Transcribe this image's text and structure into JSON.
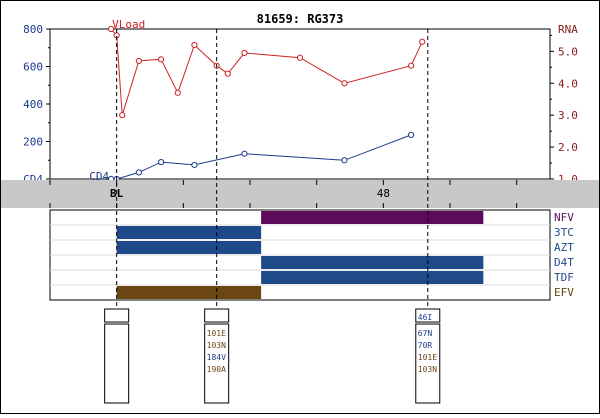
{
  "title": "81659: RG373",
  "colors": {
    "frame": "#000000",
    "cd4_axis": "#1c3a8c",
    "rna_axis": "#8b1a1a",
    "vload_series": "#cc2222",
    "cd4_series": "#1c3a8c",
    "time_band": "#c8c8c8",
    "nfv": "#5c0a5c",
    "nrti": "#1f4a8a",
    "efv": "#6b4512",
    "mutation_blue": "#1c3a8c",
    "mutation_brown": "#6b4512"
  },
  "chart_data": {
    "type": "line",
    "title": "81659: RG373",
    "left_axis": {
      "unit_label": "CD4",
      "ticks": [
        0,
        200,
        400,
        600,
        800
      ],
      "ylim": [
        0,
        800
      ]
    },
    "right_axis": {
      "unit_label": "RNA",
      "ticks": [
        "1.0",
        "2.0",
        "3.0",
        "4.0",
        "5.0"
      ],
      "ylim": [
        1.0,
        5.7
      ]
    },
    "time_axis": {
      "labels": [
        {
          "text": "BL",
          "t": 0
        },
        {
          "text": "48",
          "t": 48
        }
      ],
      "xlim": [
        -12,
        78
      ]
    },
    "series": [
      {
        "name": "VLoad",
        "axis": "right",
        "points": [
          [
            -1,
            5.7
          ],
          [
            0,
            5.5
          ],
          [
            1,
            3.0
          ],
          [
            4,
            4.7
          ],
          [
            8,
            4.75
          ],
          [
            11,
            3.7
          ],
          [
            14,
            5.2
          ],
          [
            18,
            4.55
          ],
          [
            20,
            4.3
          ],
          [
            23,
            4.95
          ],
          [
            33,
            4.8
          ],
          [
            41,
            4.0
          ],
          [
            53,
            4.55
          ],
          [
            55,
            5.3
          ]
        ]
      },
      {
        "name": "CD4",
        "axis": "left",
        "points": [
          [
            -1,
            0
          ],
          [
            0,
            0
          ],
          [
            4,
            35
          ],
          [
            8,
            90
          ],
          [
            14,
            75
          ],
          [
            23,
            135
          ],
          [
            41,
            100
          ],
          [
            53,
            235
          ]
        ]
      }
    ],
    "markers": [
      0,
      18,
      56
    ],
    "drugs": [
      {
        "name": "NFV",
        "color_key": "nfv",
        "bars": [
          [
            26,
            66
          ]
        ]
      },
      {
        "name": "3TC",
        "color_key": "nrti",
        "bars": [
          [
            0,
            26
          ]
        ]
      },
      {
        "name": "AZT",
        "color_key": "nrti",
        "bars": [
          [
            0,
            26
          ]
        ]
      },
      {
        "name": "D4T",
        "color_key": "nrti",
        "bars": [
          [
            26,
            66
          ]
        ]
      },
      {
        "name": "TDF",
        "color_key": "nrti",
        "bars": [
          [
            26,
            66
          ]
        ]
      },
      {
        "name": "EFV",
        "color_key": "efv",
        "bars": [
          [
            0,
            26
          ]
        ]
      }
    ],
    "genotypes": [
      {
        "t": 0,
        "top": [],
        "bottom": []
      },
      {
        "t": 18,
        "top": [],
        "bottom": [
          {
            "text": "101E",
            "color_key": "mutation_brown"
          },
          {
            "text": "103N",
            "color_key": "mutation_brown"
          },
          {
            "text": "184V",
            "color_key": "mutation_blue"
          },
          {
            "text": "190A",
            "color_key": "mutation_brown"
          }
        ]
      },
      {
        "t": 56,
        "top": [
          {
            "text": "46I",
            "color_key": "mutation_blue"
          }
        ],
        "bottom": [
          {
            "text": "67N",
            "color_key": "mutation_blue"
          },
          {
            "text": "70R",
            "color_key": "mutation_blue"
          },
          {
            "text": "101E",
            "color_key": "mutation_brown"
          },
          {
            "text": "103N",
            "color_key": "mutation_brown"
          }
        ]
      }
    ]
  }
}
